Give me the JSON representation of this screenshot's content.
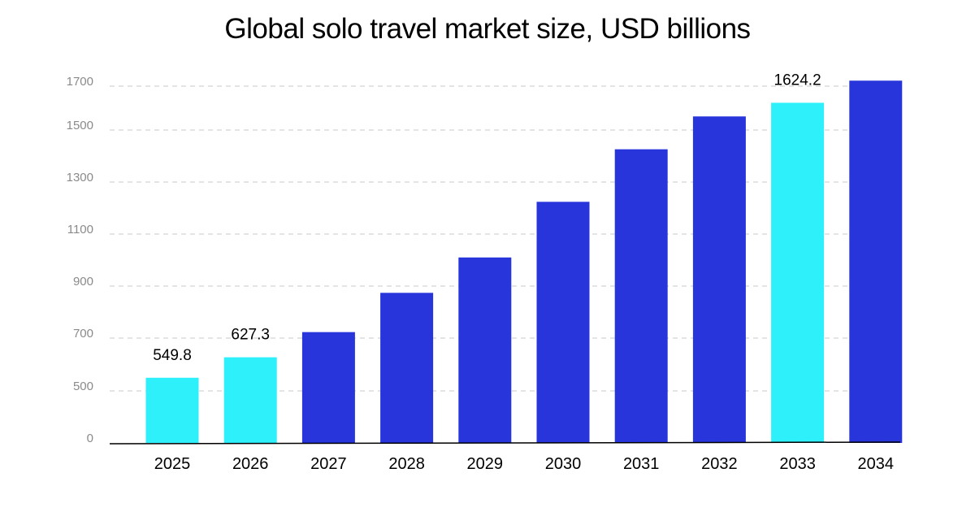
{
  "chart_data": {
    "type": "bar",
    "title": "Global solo travel market size, USD billions",
    "xlabel": "",
    "ylabel": "",
    "categories": [
      "2025",
      "2026",
      "2027",
      "2028",
      "2029",
      "2030",
      "2031",
      "2032",
      "2033",
      "2034"
    ],
    "values": [
      549.8,
      627.3,
      723,
      874,
      1010,
      1224,
      1426,
      1562,
      1624.2,
      1725
    ],
    "data_labels": [
      "549.8",
      "627.3",
      "",
      "",
      "",
      "",
      "",
      "",
      "1624.2",
      ""
    ],
    "highlighted": [
      true,
      true,
      false,
      false,
      false,
      false,
      false,
      false,
      true,
      false
    ],
    "y_ticks": [
      0,
      500,
      700,
      900,
      1100,
      1300,
      1500,
      1700
    ],
    "ylim": [
      0,
      1750
    ],
    "y_scale_note": "irregular axis: 0 to 500 compressed into one grid step",
    "grid": true,
    "legend": "none",
    "colors": {
      "highlight": "#2ef0fa",
      "bar": "#2735db",
      "axis": "#000000",
      "grid": "#c8c8c8"
    }
  }
}
